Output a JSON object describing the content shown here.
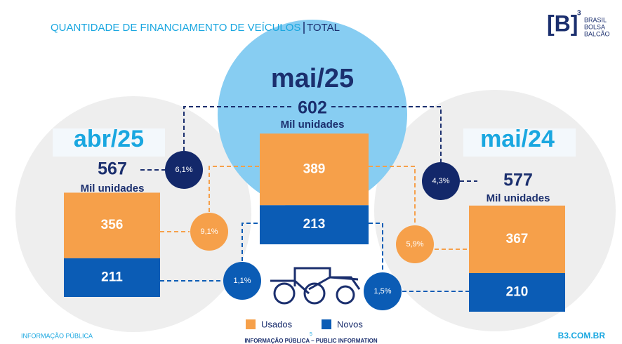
{
  "header": {
    "title": "QUANTIDADE DE FINANCIAMENTO DE VEÍCULOS",
    "title_suffix": "TOTAL",
    "logo": {
      "mark": "[B]",
      "sup": "3",
      "lines": [
        "BRASIL",
        "BOLSA",
        "BALCÃO"
      ]
    }
  },
  "chart_data": {
    "type": "bar",
    "stacked": true,
    "categories": [
      "abr/25",
      "mai/25",
      "mai/24"
    ],
    "series": [
      {
        "name": "Usados",
        "color": "#f6a04a",
        "values": [
          356,
          389,
          367
        ]
      },
      {
        "name": "Novos",
        "color": "#0b5cb5",
        "values": [
          211,
          213,
          210
        ]
      }
    ],
    "totals": [
      567,
      602,
      577
    ],
    "total_unit": "Mil unidades",
    "changes": [
      {
        "value": 6.1,
        "label": "6,1%"
      },
      {
        "value": 9.1,
        "label": "9,1%"
      },
      {
        "value": 1.1,
        "label": "1,1%"
      },
      {
        "value": 4.3,
        "label": "4,3%"
      },
      {
        "value": 5.9,
        "label": "5,9%"
      },
      {
        "value": 1.5,
        "label": "1,5%"
      }
    ]
  },
  "footer": {
    "left": "INFORMAÇÃO PÚBLICA",
    "page": "5",
    "center": "INFORMAÇÃO PÚBLICA – PUBLIC INFORMATION",
    "right": "B3.COM.BR"
  }
}
